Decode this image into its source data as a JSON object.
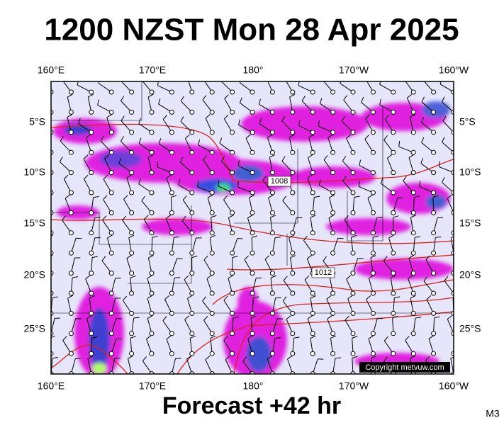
{
  "title": "1200 NZST Mon 28 Apr 2025",
  "map": {
    "lon_labels": [
      "160°E",
      "170°E",
      "180°",
      "170°W",
      "160°W"
    ],
    "lat_labels": [
      "5°S",
      "10°S",
      "15°S",
      "20°S",
      "25°S"
    ],
    "isobar_labels": [
      "1008",
      "1012"
    ],
    "copyright": "Copyright metvuw.com"
  },
  "footer": {
    "forecast": "Forecast +42 hr",
    "code": "M3"
  }
}
